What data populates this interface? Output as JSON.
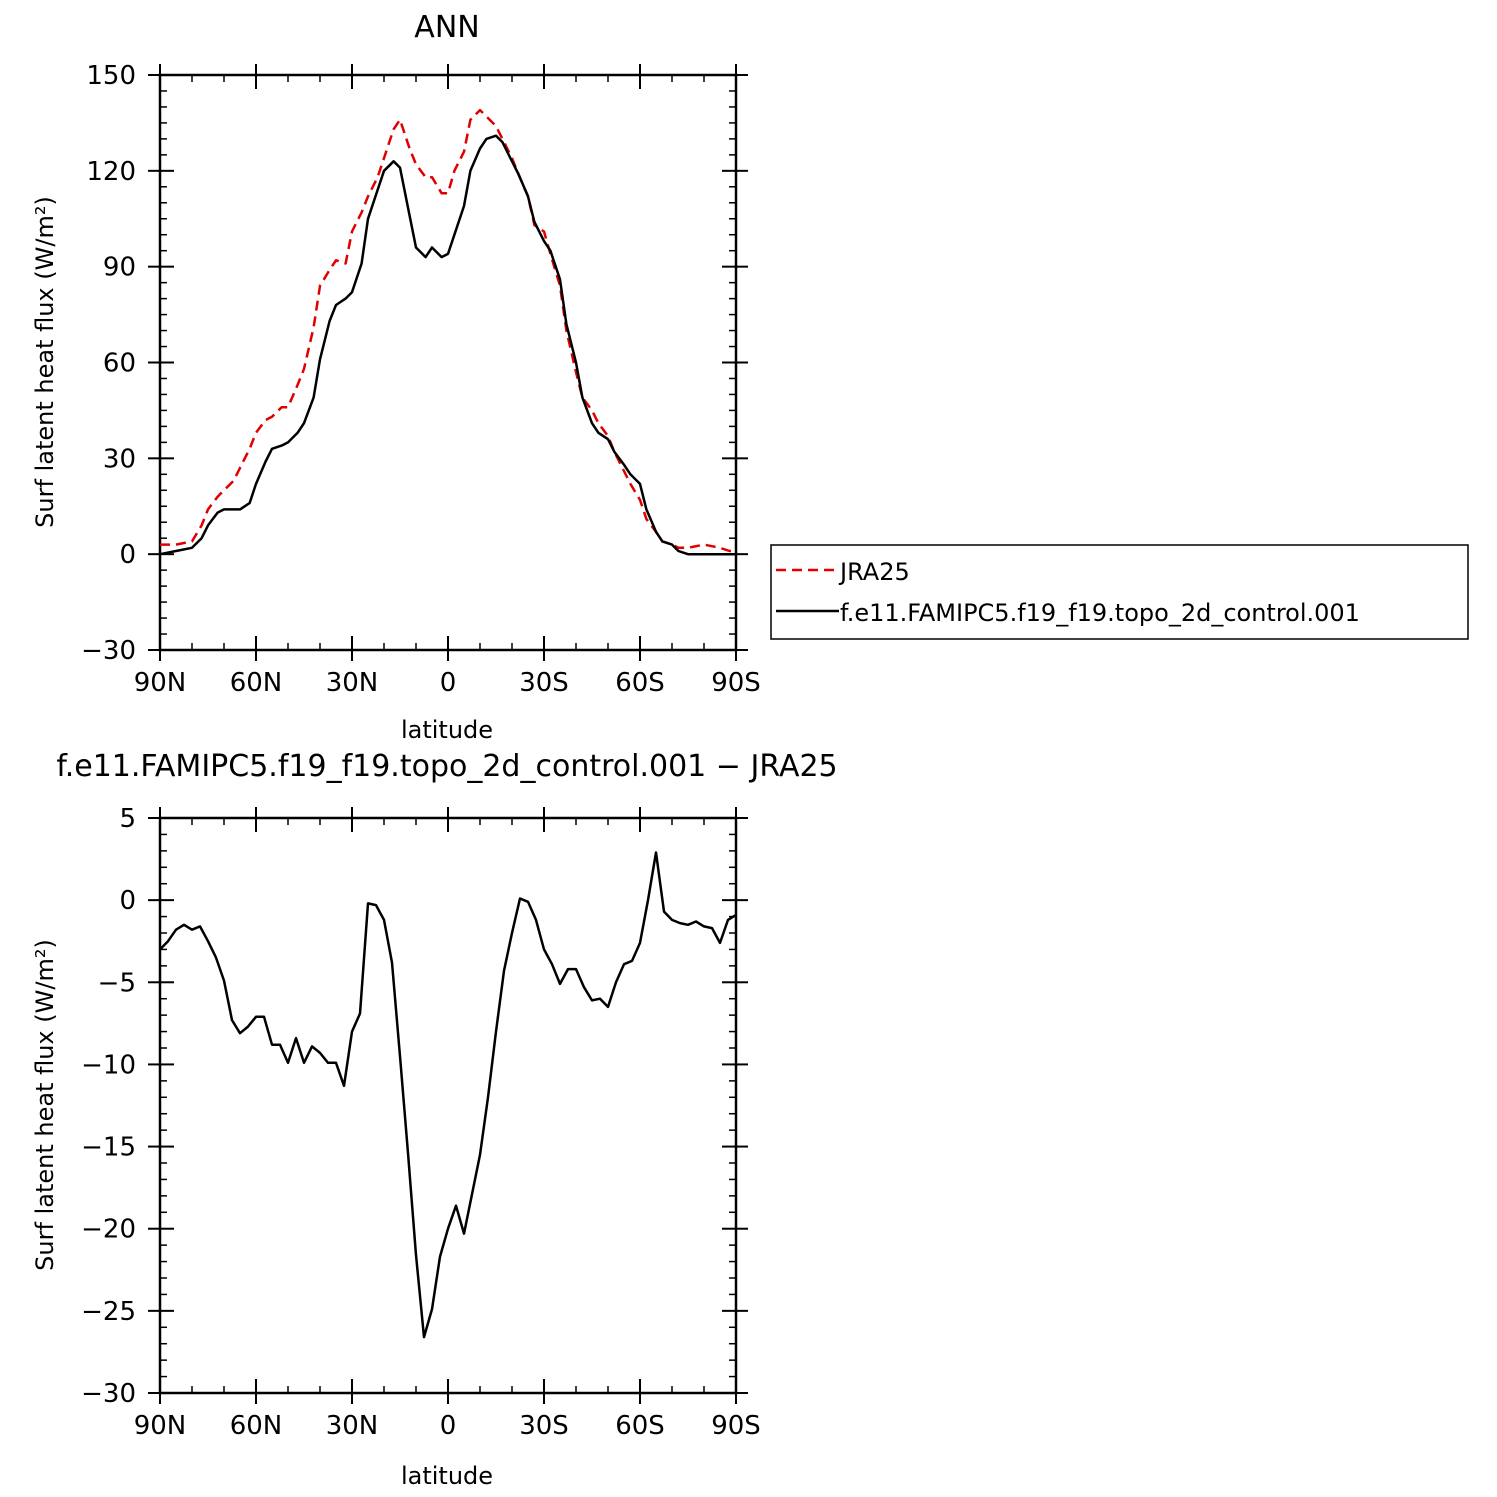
{
  "chart_data": [
    {
      "type": "line",
      "title": "ANN",
      "xlabel": "latitude",
      "ylabel": "Surf latent heat flux (W/m²)",
      "xlim": [
        90,
        -90
      ],
      "ylim": [
        -30,
        150
      ],
      "xticks": [
        90,
        60,
        30,
        0,
        -30,
        -60,
        -90
      ],
      "xtick_labels": [
        "90N",
        "60N",
        "30N",
        "0",
        "30S",
        "60S",
        "90S"
      ],
      "yticks": [
        -30,
        0,
        30,
        60,
        90,
        120,
        150
      ],
      "ytick_labels": [
        "−30",
        "0",
        "30",
        "60",
        "90",
        "120",
        "150"
      ],
      "grid": false,
      "legend": "right of plot",
      "series": [
        {
          "name": "JRA25",
          "color": "#e00000",
          "dash": "dashed",
          "x": [
            90,
            85,
            80,
            77,
            75,
            72,
            70,
            67,
            65,
            62,
            60,
            57,
            55,
            52,
            50,
            47,
            45,
            42,
            40,
            37,
            35,
            32,
            30,
            27,
            25,
            22,
            20,
            17,
            15,
            12,
            10,
            7,
            5,
            2,
            0,
            -2,
            -5,
            -7,
            -10,
            -12,
            -15,
            -17,
            -20,
            -22,
            -25,
            -27,
            -30,
            -32,
            -35,
            -37,
            -40,
            -42,
            -45,
            -47,
            -50,
            -52,
            -55,
            -57,
            -60,
            -62,
            -65,
            -67,
            -70,
            -72,
            -75,
            -80,
            -85,
            -88,
            -90
          ],
          "y": [
            3,
            3,
            4,
            9,
            14,
            18,
            20,
            23,
            27,
            33,
            38,
            42,
            43,
            46,
            46,
            53,
            58,
            71,
            84,
            89,
            92,
            91,
            101,
            107,
            112,
            118,
            124,
            133,
            136,
            127,
            122,
            118,
            118,
            113,
            113,
            120,
            126,
            136,
            139,
            137,
            134,
            130,
            124,
            119,
            112,
            103,
            101,
            94,
            84,
            70,
            57,
            49,
            45,
            41,
            37,
            32,
            26,
            22,
            17,
            11,
            7,
            4,
            3,
            2,
            2,
            3,
            2,
            1,
            1
          ]
        },
        {
          "name": "f.e11.FAMIPC5.f19_f19.topo_2d_control.001",
          "color": "#000000",
          "dash": "solid",
          "x": [
            90,
            85,
            80,
            77,
            75,
            72,
            70,
            67,
            65,
            62,
            60,
            57,
            55,
            52,
            50,
            47,
            45,
            42,
            40,
            37,
            35,
            32,
            30,
            27,
            25,
            22,
            20,
            17,
            15,
            12,
            10,
            7,
            5,
            2,
            0,
            -2,
            -5,
            -7,
            -10,
            -12,
            -15,
            -17,
            -20,
            -22,
            -25,
            -27,
            -30,
            -32,
            -35,
            -37,
            -40,
            -42,
            -45,
            -47,
            -50,
            -52,
            -55,
            -57,
            -60,
            -62,
            -65,
            -67,
            -70,
            -72,
            -75,
            -80,
            -85,
            -88,
            -90
          ],
          "y": [
            0,
            1,
            2,
            5,
            9,
            13,
            14,
            14,
            14,
            16,
            22,
            29,
            33,
            34,
            35,
            38,
            41,
            49,
            61,
            73,
            78,
            80,
            82,
            91,
            105,
            114,
            120,
            123,
            121,
            106,
            96,
            93,
            96,
            93,
            94,
            100,
            109,
            120,
            127,
            130,
            131,
            129,
            123,
            119,
            112,
            104,
            98,
            95,
            86,
            72,
            60,
            49,
            41,
            38,
            36,
            32,
            28,
            25,
            22,
            14,
            7,
            4,
            3,
            1,
            0,
            0,
            0,
            0,
            0
          ]
        }
      ]
    },
    {
      "type": "line",
      "title": "f.e11.FAMIPC5.f19_f19.topo_2d_control.001  −  JRA25",
      "xlabel": "latitude",
      "ylabel": "Surf latent heat flux (W/m²)",
      "xlim": [
        90,
        -90
      ],
      "ylim": [
        -30,
        5
      ],
      "xticks": [
        90,
        60,
        30,
        0,
        -30,
        -60,
        -90
      ],
      "xtick_labels": [
        "90N",
        "60N",
        "30N",
        "0",
        "30S",
        "60S",
        "90S"
      ],
      "yticks": [
        -30,
        -25,
        -20,
        -15,
        -10,
        -5,
        0,
        5
      ],
      "ytick_labels": [
        "−30",
        "−25",
        "−20",
        "−15",
        "−10",
        "−5",
        "0",
        "5"
      ],
      "grid": false,
      "series": [
        {
          "color": "#000000",
          "dash": "solid",
          "x": [
            90,
            87.5,
            85,
            82.5,
            80,
            77.5,
            75,
            72.5,
            70,
            67.5,
            65,
            62.5,
            60,
            57.5,
            55,
            52.5,
            50,
            47.5,
            45,
            42.5,
            40,
            37.5,
            35,
            32.5,
            30,
            27.5,
            25,
            22.5,
            20,
            17.5,
            15,
            12.5,
            10,
            7.5,
            5,
            2.5,
            0,
            -2.5,
            -5,
            -7.5,
            -10,
            -12.5,
            -15,
            -17.5,
            -20,
            -22.5,
            -25,
            -27.5,
            -30,
            -32.5,
            -35,
            -37.5,
            -40,
            -42.5,
            -45,
            -47.5,
            -50,
            -52.5,
            -55,
            -57.5,
            -60,
            -62.5,
            -65,
            -67.5,
            -70,
            -72.5,
            -75,
            -77.5,
            -80,
            -82.5,
            -85,
            -87.5,
            -90
          ],
          "y": [
            -3,
            -2.5,
            -1.8,
            -1.5,
            -1.8,
            -1.6,
            -2.5,
            -3.5,
            -4.9,
            -7.3,
            -8.1,
            -7.7,
            -7.1,
            -7.1,
            -8.8,
            -8.8,
            -9.9,
            -8.4,
            -9.9,
            -8.9,
            -9.3,
            -9.9,
            -9.9,
            -11.3,
            -8.0,
            -6.9,
            -0.2,
            -0.3,
            -1.2,
            -3.8,
            -9.5,
            -15.4,
            -21.6,
            -26.6,
            -24.9,
            -21.7,
            -20.0,
            -18.6,
            -20.3,
            -17.9,
            -15.5,
            -12.0,
            -8.0,
            -4.3,
            -2.0,
            0.1,
            -0.1,
            -1.2,
            -3.0,
            -3.9,
            -5.1,
            -4.2,
            -4.2,
            -5.3,
            -6.1,
            -6.0,
            -6.5,
            -5.0,
            -3.9,
            -3.7,
            -2.6,
            0.0,
            2.9,
            -0.7,
            -1.2,
            -1.4,
            -1.5,
            -1.3,
            -1.6,
            -1.7,
            -2.6,
            -1.2,
            -0.9
          ]
        }
      ]
    }
  ]
}
